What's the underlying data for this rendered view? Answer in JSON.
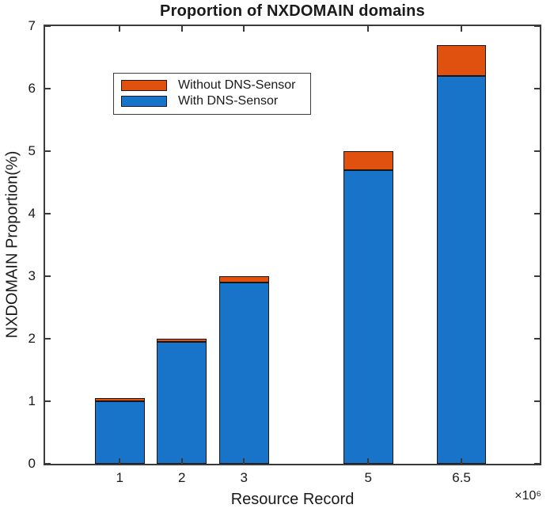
{
  "title": "Proportion of NXDOMAIN domains",
  "axes": {
    "xlabel": "Resource Record",
    "ylabel": "NXDOMAIN Proportion(%)",
    "x_multiplier": "×10⁶"
  },
  "legend": {
    "items": [
      {
        "label": "Without DNS-Sensor",
        "color": "#e0510f"
      },
      {
        "label": "With DNS-Sensor",
        "color": "#1874c8"
      }
    ]
  },
  "colors": {
    "axis": "#3a3a3a",
    "text": "#1a1a1a",
    "bar_edge": "#161616",
    "with_sensor_blue": "#1874c8",
    "without_sensor_orange": "#e0510f",
    "background": "#ffffff"
  },
  "chart_data": {
    "type": "bar",
    "stacked": true,
    "title": "Proportion of NXDOMAIN domains",
    "xlabel": "Resource Record",
    "ylabel": "NXDOMAIN Proportion(%)",
    "x_unit_multiplier": 1000000,
    "categories": [
      1,
      2,
      3,
      5,
      6.5
    ],
    "series": [
      {
        "name": "With DNS-Sensor",
        "color": "#1874c8",
        "values": [
          1.0,
          1.95,
          2.9,
          4.7,
          6.2
        ]
      },
      {
        "name": "Without DNS-Sensor",
        "color": "#e0510f",
        "values": [
          0.05,
          0.05,
          0.1,
          0.3,
          0.5
        ]
      }
    ],
    "stacked_totals": [
      1.05,
      2.0,
      3.0,
      5.0,
      6.7
    ],
    "xticks": [
      1,
      2,
      3,
      5,
      6.5
    ],
    "yticks": [
      0,
      1,
      2,
      3,
      4,
      5,
      6,
      7
    ],
    "xlim": [
      -0.2,
      7.76
    ],
    "ylim": [
      0,
      7
    ],
    "bar_width": 0.8,
    "grid": false,
    "legend_position": "upper-left-inside"
  }
}
